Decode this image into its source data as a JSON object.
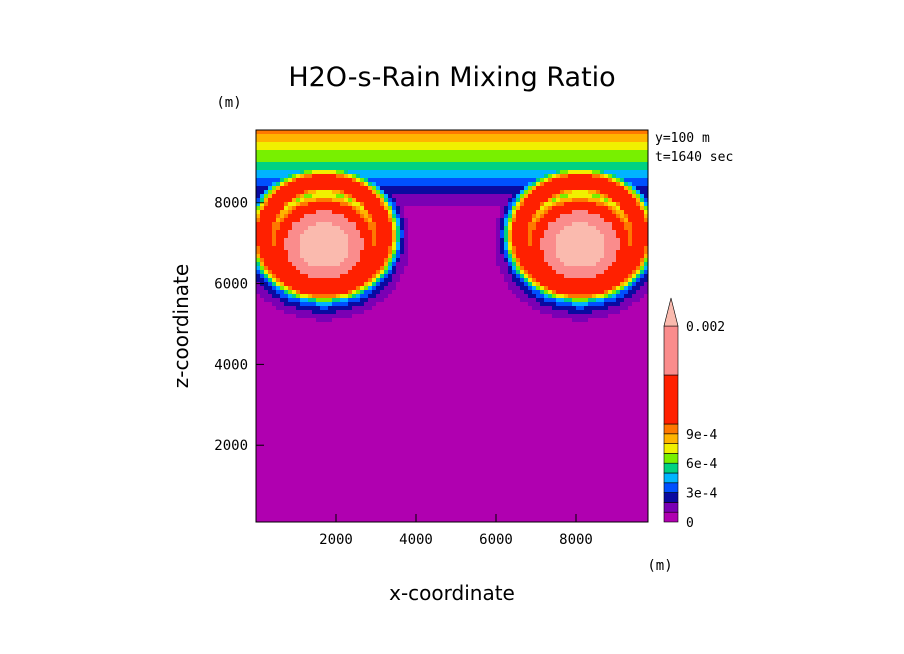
{
  "chart_data": {
    "type": "heatmap",
    "title": "H2O-s-Rain Mixing Ratio",
    "xlabel": "x-coordinate",
    "ylabel": "z-coordinate",
    "x_unit": "(m)",
    "y_unit": "(m)",
    "annotations": [
      "y=100 m",
      "t=1640 sec"
    ],
    "xlim": [
      0,
      9800
    ],
    "ylim": [
      100,
      9800
    ],
    "x_ticks": [
      2000,
      4000,
      6000,
      8000
    ],
    "y_ticks": [
      2000,
      4000,
      6000,
      8000
    ],
    "x_tick_labels": [
      "2000",
      "4000",
      "6000",
      "8000"
    ],
    "y_tick_labels": [
      "2000",
      "4000",
      "6000",
      "8000"
    ],
    "grid": false,
    "colorbar": {
      "placement": "right",
      "levels": [
        {
          "value": 0,
          "color": "#b000b0"
        },
        {
          "value": 0.0001,
          "color": "#7a00b4"
        },
        {
          "value": 0.0002,
          "color": "#0a0aa0"
        },
        {
          "value": 0.0003,
          "color": "#0050ff"
        },
        {
          "value": 0.0004,
          "color": "#00b4ff"
        },
        {
          "value": 0.0005,
          "color": "#00d282"
        },
        {
          "value": 0.0006,
          "color": "#78f000"
        },
        {
          "value": 0.0007,
          "color": "#f0f000"
        },
        {
          "value": 0.0008,
          "color": "#ffb400"
        },
        {
          "value": 0.0009,
          "color": "#ff7800"
        },
        {
          "value": 0.001,
          "color": "#ff2000"
        },
        {
          "value": 0.0015,
          "color": "#fa8c8c"
        },
        {
          "value": 0.002,
          "color": "#fabaae"
        }
      ],
      "labels": [
        {
          "value": 0,
          "text": "0"
        },
        {
          "value": 0.0003,
          "text": "3e-4"
        },
        {
          "value": 0.0006,
          "text": "6e-4"
        },
        {
          "value": 0.0009,
          "text": "9e-4"
        },
        {
          "value": 0.002,
          "text": "0.002"
        }
      ]
    },
    "features": {
      "background_value": 0,
      "thermal_core_value": 0.002,
      "left_thermal_center": [
        1700,
        6950
      ],
      "right_thermal_center": [
        8100,
        6950
      ],
      "cap_top_value": 0.0008
    }
  }
}
